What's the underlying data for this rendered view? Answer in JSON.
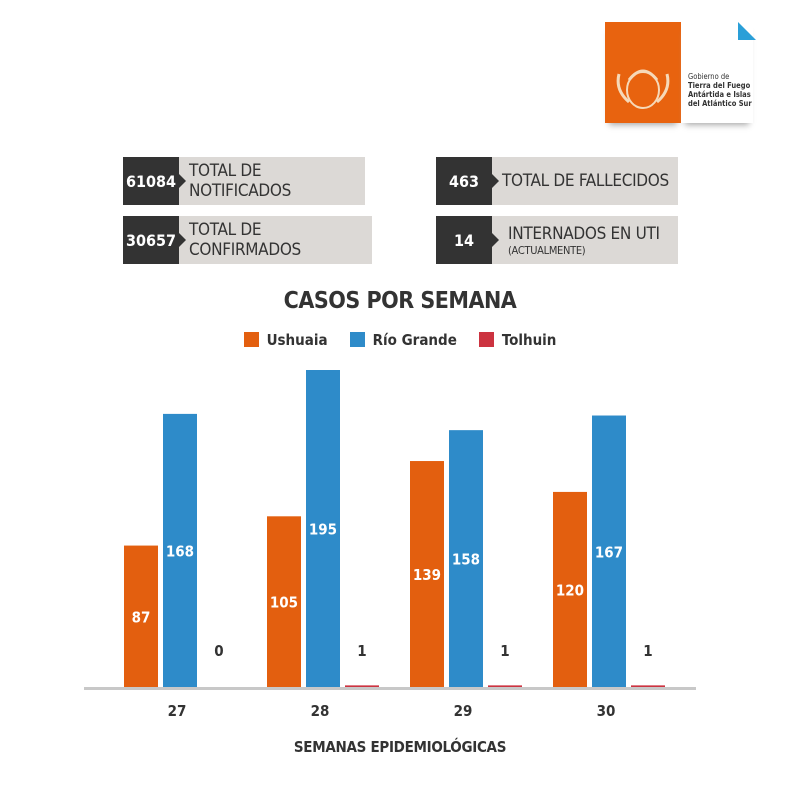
{
  "logo": {
    "line1": "Gobierno de",
    "line2": "Tierra del Fuego",
    "line3": "Antártida e Islas",
    "line4": "del Atlántico Sur"
  },
  "stats": [
    {
      "value": "61084",
      "label": "TOTAL DE NOTIFICADOS"
    },
    {
      "value": "30657",
      "label": "TOTAL DE CONFIRMADOS"
    },
    {
      "value": "463",
      "label": "TOTAL DE FALLECIDOS"
    },
    {
      "value": "14",
      "label": "INTERNADOS EN UTI",
      "sublabel": "(ACTUALMENTE)"
    }
  ],
  "colors": {
    "orange": "#e35f0f",
    "blue": "#2e8bc9",
    "red": "#cc3340",
    "dark": "#333333",
    "gray": "#dcd9d6"
  },
  "chart_data": {
    "type": "bar",
    "title": "CASOS POR SEMANA",
    "xlabel": "SEMANAS EPIDEMIOLÓGICAS",
    "ylabel": "",
    "categories": [
      "27",
      "28",
      "29",
      "30"
    ],
    "series": [
      {
        "name": "Ushuaia",
        "color": "#e35f0f",
        "values": [
          87,
          105,
          139,
          120
        ]
      },
      {
        "name": "Río Grande",
        "color": "#2e8bc9",
        "values": [
          168,
          195,
          158,
          167
        ]
      },
      {
        "name": "Tolhuin",
        "color": "#cc3340",
        "values": [
          0,
          1,
          1,
          1
        ]
      }
    ],
    "ylim": [
      0,
      195
    ],
    "grid": false,
    "legend": "top"
  }
}
